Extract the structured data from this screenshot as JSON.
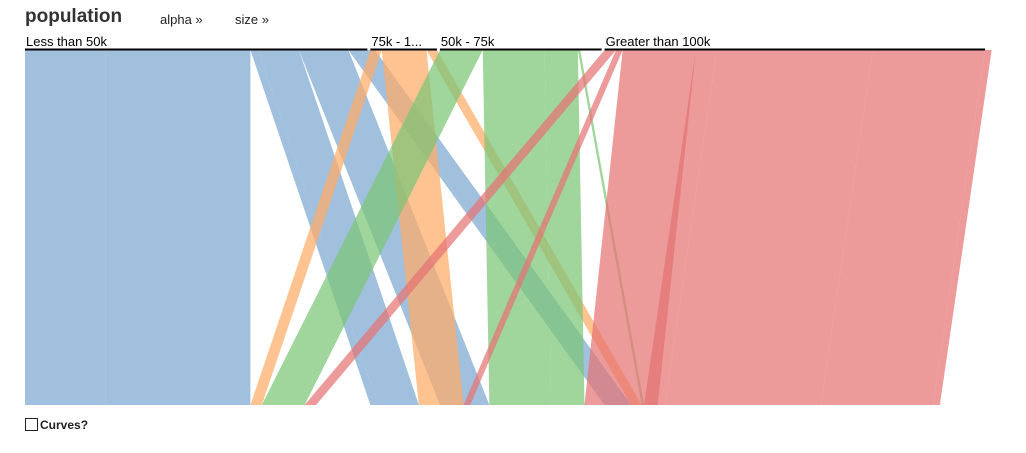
{
  "header": {
    "title": "population",
    "sort_alpha": "alpha »",
    "sort_size": "size »"
  },
  "controls": {
    "curves_label": "Curves?",
    "curves_checked": false
  },
  "chart_data": {
    "type": "parallel-sets",
    "dimension": "population",
    "categories": [
      "Less than 50k",
      "75k - 1...",
      "50k - 75k",
      "Greater than 100k"
    ],
    "category_weights": [
      0.36,
      0.07,
      0.17,
      0.4
    ],
    "category_colors": [
      "#7ba7d0",
      "#ffaa66",
      "#7cc576",
      "#e57373"
    ],
    "ribbons": [
      {
        "from": 0,
        "weight": 0.085,
        "to": 0
      },
      {
        "from": 0,
        "weight": 0.152,
        "to": 0
      },
      {
        "from": 0,
        "weight": 0.008,
        "to": 1
      },
      {
        "from": 0,
        "weight": 0.043,
        "to": 1
      },
      {
        "from": 0,
        "weight": 0.052,
        "to": 2
      },
      {
        "from": 0,
        "weight": 0.003,
        "to": 3
      },
      {
        "from": 0,
        "weight": 0.025,
        "to": 3
      },
      {
        "from": 1,
        "weight": 0.012,
        "to": 0
      },
      {
        "from": 1,
        "weight": 0.047,
        "to": 1
      },
      {
        "from": 1,
        "weight": 0.011,
        "to": 3
      },
      {
        "from": 2,
        "weight": 0.045,
        "to": 0
      },
      {
        "from": 2,
        "weight": 0.065,
        "to": 2
      },
      {
        "from": 2,
        "weight": 0.035,
        "to": 2
      },
      {
        "from": 2,
        "weight": 0.0005,
        "to": 3
      },
      {
        "from": 2,
        "weight": 0.002,
        "to": 3
      },
      {
        "from": 3,
        "weight": 0.012,
        "to": 0
      },
      {
        "from": 3,
        "weight": 0.007,
        "to": 1
      },
      {
        "from": 3,
        "weight": 0.077,
        "to": 2
      },
      {
        "from": 3,
        "weight": 0.022,
        "to": 3
      },
      {
        "from": 3,
        "weight": 0.164,
        "to": 3
      },
      {
        "from": 3,
        "weight": 0.118,
        "to": 3
      },
      {
        "from": 3,
        "weight": 0.007,
        "to": 3
      }
    ]
  }
}
